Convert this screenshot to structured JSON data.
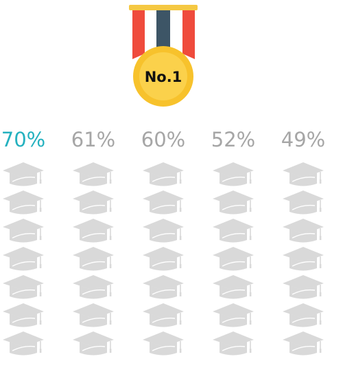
{
  "medal": {
    "label": "No.1",
    "colors": {
      "bar": "#f5c842",
      "ribbon_red": "#ef4b3c",
      "ribbon_dark": "#3d5566",
      "ribbon_white": "#ffffff",
      "disc_outer": "#f7c22c",
      "disc_inner": "#fbd14b",
      "text": "#111111"
    },
    "icon": "medal-icon"
  },
  "chart_data": {
    "type": "pictograph",
    "icon": "graduation-cap-icon",
    "icons_per_column": 7,
    "series": [
      {
        "label": "70%",
        "value": 70,
        "highlight": true
      },
      {
        "label": "61%",
        "value": 61,
        "highlight": false
      },
      {
        "label": "60%",
        "value": 60,
        "highlight": false
      },
      {
        "label": "52%",
        "value": 52,
        "highlight": false
      },
      {
        "label": "49%",
        "value": 49,
        "highlight": false
      }
    ],
    "colors": {
      "filled": "#24b1bf",
      "empty": "#d9d9d9",
      "highlight_label": "#24b1bf",
      "label": "#a6a6a6"
    }
  }
}
